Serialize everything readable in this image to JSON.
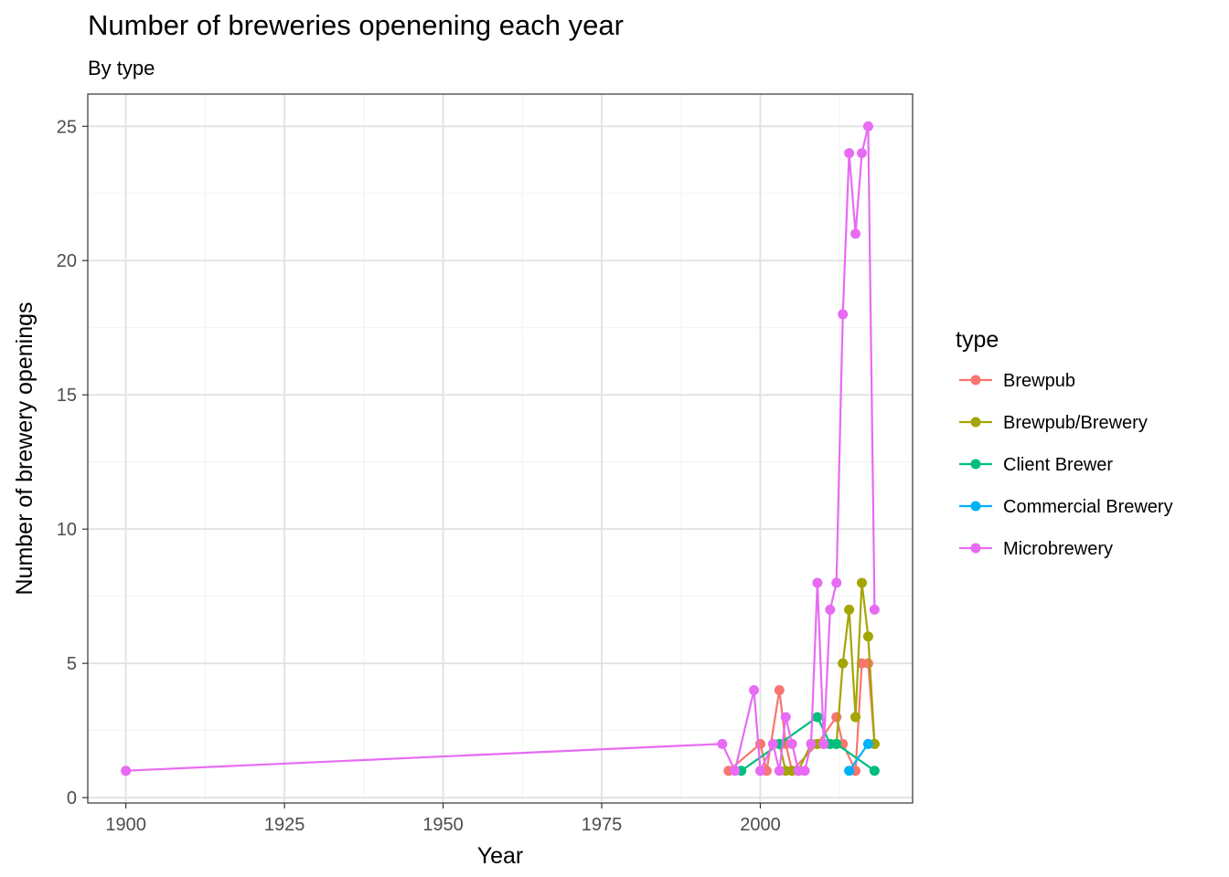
{
  "chart_data": {
    "type": "line",
    "title": "Number of breweries openening each year",
    "subtitle": "By type",
    "xlabel": "Year",
    "ylabel": "Number of brewery openings",
    "xlim": [
      1894,
      2024
    ],
    "ylim": [
      -0.2,
      26.2
    ],
    "x_ticks": [
      1900,
      1925,
      1950,
      1975,
      2000
    ],
    "y_ticks": [
      0,
      5,
      10,
      15,
      20,
      25
    ],
    "grid": true,
    "legend_title": "type",
    "legend_position": "right",
    "series": [
      {
        "name": "Brewpub",
        "color": "#F8766D",
        "points": [
          [
            1995,
            1
          ],
          [
            2000,
            2
          ],
          [
            2001,
            1
          ],
          [
            2003,
            4
          ],
          [
            2004,
            2
          ],
          [
            2005,
            1
          ],
          [
            2009,
            2
          ],
          [
            2012,
            3
          ],
          [
            2013,
            2
          ],
          [
            2015,
            1
          ],
          [
            2016,
            5
          ],
          [
            2017,
            5
          ],
          [
            2018,
            2
          ]
        ]
      },
      {
        "name": "Brewpub/Brewery",
        "color": "#A3A500",
        "points": [
          [
            2003,
            2
          ],
          [
            2004,
            1
          ],
          [
            2005,
            1
          ],
          [
            2006,
            1
          ],
          [
            2008,
            2
          ],
          [
            2009,
            2
          ],
          [
            2010,
            2
          ],
          [
            2011,
            2
          ],
          [
            2012,
            2
          ],
          [
            2013,
            5
          ],
          [
            2014,
            7
          ],
          [
            2015,
            3
          ],
          [
            2016,
            8
          ],
          [
            2017,
            6
          ],
          [
            2018,
            2
          ]
        ]
      },
      {
        "name": "Client Brewer",
        "color": "#00BF7D",
        "points": [
          [
            1997,
            1
          ],
          [
            2003,
            2
          ],
          [
            2009,
            3
          ],
          [
            2011,
            2
          ],
          [
            2012,
            2
          ],
          [
            2018,
            1
          ]
        ]
      },
      {
        "name": "Commercial Brewery",
        "color": "#00B0F6",
        "points": [
          [
            2014,
            1
          ],
          [
            2017,
            2
          ]
        ]
      },
      {
        "name": "Microbrewery",
        "color": "#E76BF3",
        "points": [
          [
            1900,
            1
          ],
          [
            1994,
            2
          ],
          [
            1996,
            1
          ],
          [
            1999,
            4
          ],
          [
            2000,
            1
          ],
          [
            2002,
            2
          ],
          [
            2003,
            1
          ],
          [
            2004,
            3
          ],
          [
            2005,
            2
          ],
          [
            2006,
            1
          ],
          [
            2007,
            1
          ],
          [
            2008,
            2
          ],
          [
            2009,
            8
          ],
          [
            2010,
            2
          ],
          [
            2011,
            7
          ],
          [
            2012,
            8
          ],
          [
            2013,
            18
          ],
          [
            2014,
            24
          ],
          [
            2015,
            21
          ],
          [
            2016,
            24
          ],
          [
            2017,
            25
          ],
          [
            2018,
            7
          ]
        ]
      }
    ]
  }
}
